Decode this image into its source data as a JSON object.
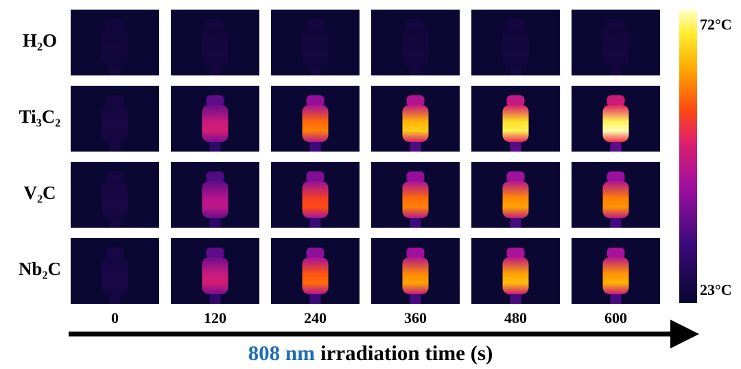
{
  "samples": [
    "H₂O",
    "Ti₃C₂",
    "V₂C",
    "Nb₂C"
  ],
  "times": [
    "0",
    "120",
    "240",
    "360",
    "480",
    "600"
  ],
  "colorbar": {
    "max_label": "72°C",
    "min_label": "23°C"
  },
  "axis_title": {
    "highlight": "808 nm",
    "rest": "irradiation time (s)"
  }
}
